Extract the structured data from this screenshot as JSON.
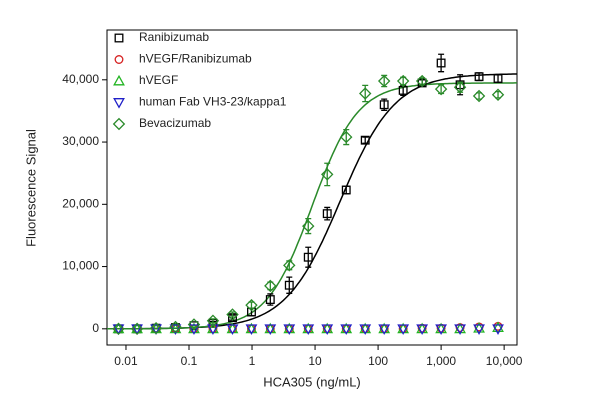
{
  "chart_data": {
    "type": "scatter",
    "xlabel": "HCA305 (ng/mL)",
    "ylabel": "Fluorescence Signal",
    "xscale": "log",
    "xlim": [
      0.005,
      16000
    ],
    "ylim": [
      -2600,
      48000
    ],
    "xticks": [
      0.01,
      0.1,
      1,
      10,
      100,
      {
        "value": 1000,
        "label": "1,000"
      },
      {
        "value": 10000,
        "label": "10,000"
      }
    ],
    "yticks": [
      0,
      {
        "value": 10000,
        "label": "10,000"
      },
      {
        "value": 20000,
        "label": "20,000"
      },
      {
        "value": 30000,
        "label": "30,000"
      },
      {
        "value": 40000,
        "label": "40,000"
      }
    ],
    "legend": "upper left",
    "x": [
      0.0076,
      0.015,
      0.03,
      0.061,
      0.12,
      0.24,
      0.49,
      0.98,
      1.95,
      3.9,
      7.8,
      15.6,
      31.25,
      62.5,
      125,
      250,
      500,
      1000,
      2000,
      4000,
      8000
    ],
    "series": [
      {
        "name": "Ranibizumab",
        "color": "#000000",
        "marker": "square",
        "values": [
          0,
          0,
          100,
          200,
          500,
          900,
          1800,
          2700,
          4700,
          7000,
          11500,
          18500,
          22300,
          30300,
          36000,
          38300,
          39500,
          42700,
          39200,
          40500,
          40200
        ],
        "errors": [
          0,
          0,
          0,
          0,
          0,
          300,
          400,
          600,
          900,
          1300,
          1600,
          1000,
          600,
          500,
          900,
          800,
          500,
          1400,
          1600,
          600,
          600
        ],
        "fit": {
          "bottom": 0,
          "top": 41000,
          "ec50": 25,
          "hill": 1.0
        }
      },
      {
        "name": "hVEGF/Ranibizumab",
        "color": "#d62020",
        "marker": "circle",
        "values": [
          0,
          0,
          0,
          0,
          0,
          0,
          0,
          0,
          0,
          0,
          0,
          0,
          0,
          0,
          0,
          0,
          100,
          100,
          200,
          300,
          400
        ]
      },
      {
        "name": "hVEGF",
        "color": "#22b422",
        "marker": "triangle",
        "values": [
          0,
          0,
          0,
          0,
          0,
          0,
          0,
          0,
          0,
          0,
          0,
          0,
          0,
          0,
          0,
          0,
          0,
          0,
          0,
          100,
          200
        ]
      },
      {
        "name": "human Fab VH3-23/kappa1",
        "color": "#2020c8",
        "marker": "triangle-down",
        "values": [
          0,
          0,
          0,
          0,
          0,
          0,
          0,
          0,
          0,
          0,
          0,
          0,
          0,
          0,
          0,
          0,
          0,
          0,
          0,
          0,
          0
        ]
      },
      {
        "name": "Bevacizumab",
        "color": "#2a8a2a",
        "marker": "diamond",
        "values": [
          0,
          0,
          100,
          300,
          700,
          1300,
          2300,
          3800,
          6900,
          10200,
          16500,
          24800,
          30800,
          37800,
          39800,
          39800,
          39800,
          38500,
          38800,
          37400,
          37600
        ],
        "errors": [
          0,
          0,
          0,
          0,
          0,
          300,
          400,
          500,
          600,
          700,
          1200,
          1800,
          1200,
          1300,
          900,
          600,
          500,
          700,
          800,
          500,
          500
        ],
        "fit": {
          "bottom": 0,
          "top": 39500,
          "ec50": 9,
          "hill": 1.2
        }
      }
    ]
  }
}
